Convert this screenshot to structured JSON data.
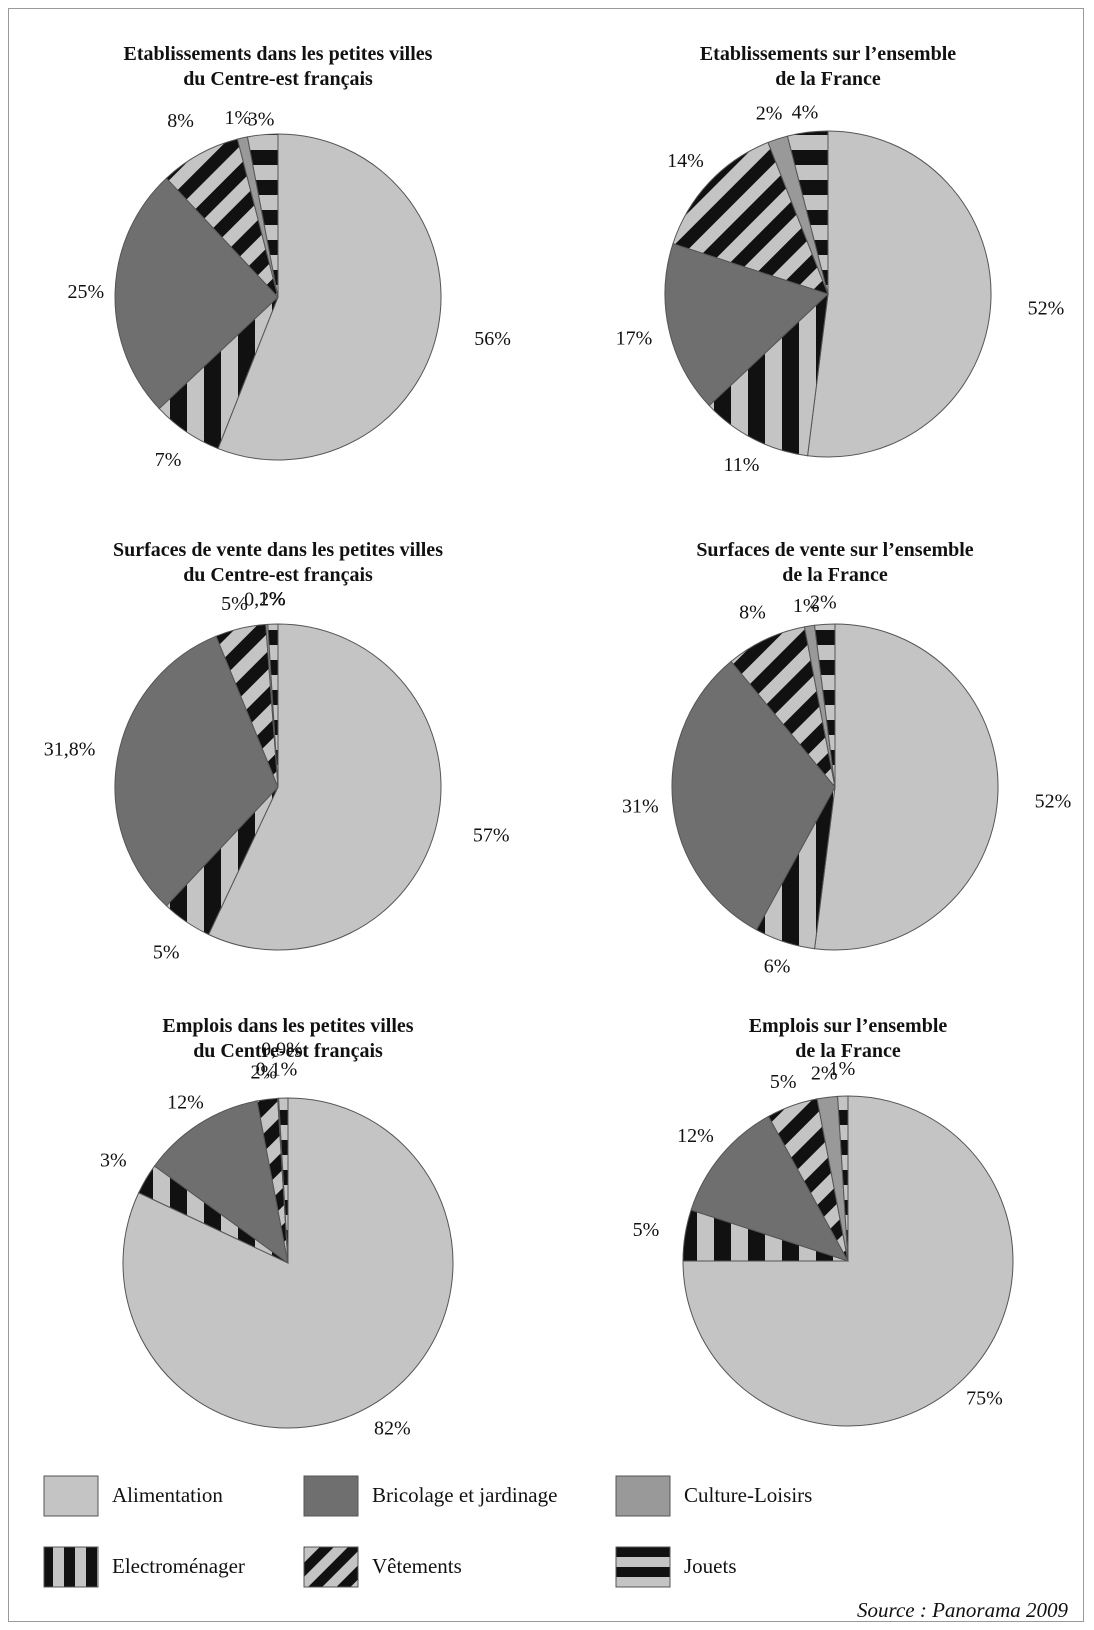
{
  "chart_data": [
    {
      "type": "pie",
      "title_lines": [
        "Etablissements dans les petites villes",
        "du Centre-est français"
      ],
      "categories": [
        "Alimentation",
        "Electroménager",
        "Bricolage et jardinage",
        "Vêtements",
        "Culture-Loisirs",
        "Jouets"
      ],
      "values": [
        56,
        7,
        25,
        8,
        1,
        3
      ],
      "labels": [
        "56%",
        "7%",
        "25%",
        "8%",
        "1%",
        "3%"
      ]
    },
    {
      "type": "pie",
      "title_lines": [
        "Etablissements sur l’ensemble",
        "de la France"
      ],
      "categories": [
        "Alimentation",
        "Electroménager",
        "Bricolage et jardinage",
        "Vêtements",
        "Culture-Loisirs",
        "Jouets"
      ],
      "values": [
        52,
        11,
        17,
        14,
        2,
        4
      ],
      "labels": [
        "52%",
        "11%",
        "17%",
        "14%",
        "2%",
        "4%"
      ]
    },
    {
      "type": "pie",
      "title_lines": [
        "Surfaces de vente dans les petites villes",
        "du Centre-est français"
      ],
      "categories": [
        "Alimentation",
        "Electroménager",
        "Bricolage et jardinage",
        "Vêtements",
        "Culture-Loisirs",
        "Jouets"
      ],
      "values": [
        57,
        5,
        31.8,
        5,
        0.2,
        1
      ],
      "labels": [
        "57%",
        "5%",
        "31,8%",
        "5%",
        "0,2%",
        "1%"
      ]
    },
    {
      "type": "pie",
      "title_lines": [
        "Surfaces de vente sur l’ensemble",
        "de la France"
      ],
      "categories": [
        "Alimentation",
        "Electroménager",
        "Bricolage et jardinage",
        "Vêtements",
        "Culture-Loisirs",
        "Jouets"
      ],
      "values": [
        52,
        6,
        31,
        8,
        1,
        2
      ],
      "labels": [
        "52%",
        "6%",
        "31%",
        "8%",
        "1%",
        "2%"
      ]
    },
    {
      "type": "pie",
      "title_lines": [
        "Emplois dans les petites villes",
        "du Centre-est français"
      ],
      "categories": [
        "Alimentation",
        "Electroménager",
        "Bricolage et jardinage",
        "Vêtements",
        "Culture-Loisirs",
        "Jouets"
      ],
      "values": [
        82,
        3,
        12,
        2,
        0.1,
        0.9
      ],
      "labels": [
        "82%",
        "3%",
        "12%",
        "2%",
        "0,1%",
        "0,9%"
      ]
    },
    {
      "type": "pie",
      "title_lines": [
        "Emplois sur l’ensemble",
        "de la France"
      ],
      "categories": [
        "Alimentation",
        "Electroménager",
        "Bricolage et jardinage",
        "Vêtements",
        "Culture-Loisirs",
        "Jouets"
      ],
      "values": [
        75,
        5,
        12,
        5,
        2,
        1
      ],
      "labels": [
        "75%",
        "5%",
        "12%",
        "5%",
        "2%",
        "1%"
      ]
    }
  ],
  "legend": [
    {
      "name": "Alimentation",
      "pattern": "solid-light"
    },
    {
      "name": "Electroménager",
      "pattern": "vertical-stripes"
    },
    {
      "name": "Bricolage et jardinage",
      "pattern": "solid-dark"
    },
    {
      "name": "Vêtements",
      "pattern": "diagonal-stripes"
    },
    {
      "name": "Culture-Loisirs",
      "pattern": "solid-medium"
    },
    {
      "name": "Jouets",
      "pattern": "horizontal-stripes"
    }
  ],
  "colors": {
    "alimentation": "#c4c4c4",
    "bricolage": "#6f6f6f",
    "culture": "#999999",
    "stripe_dark": "#111111",
    "stripe_light": "#c4c4c4",
    "outline": "#555555"
  },
  "source": "Source : Panorama 2009"
}
